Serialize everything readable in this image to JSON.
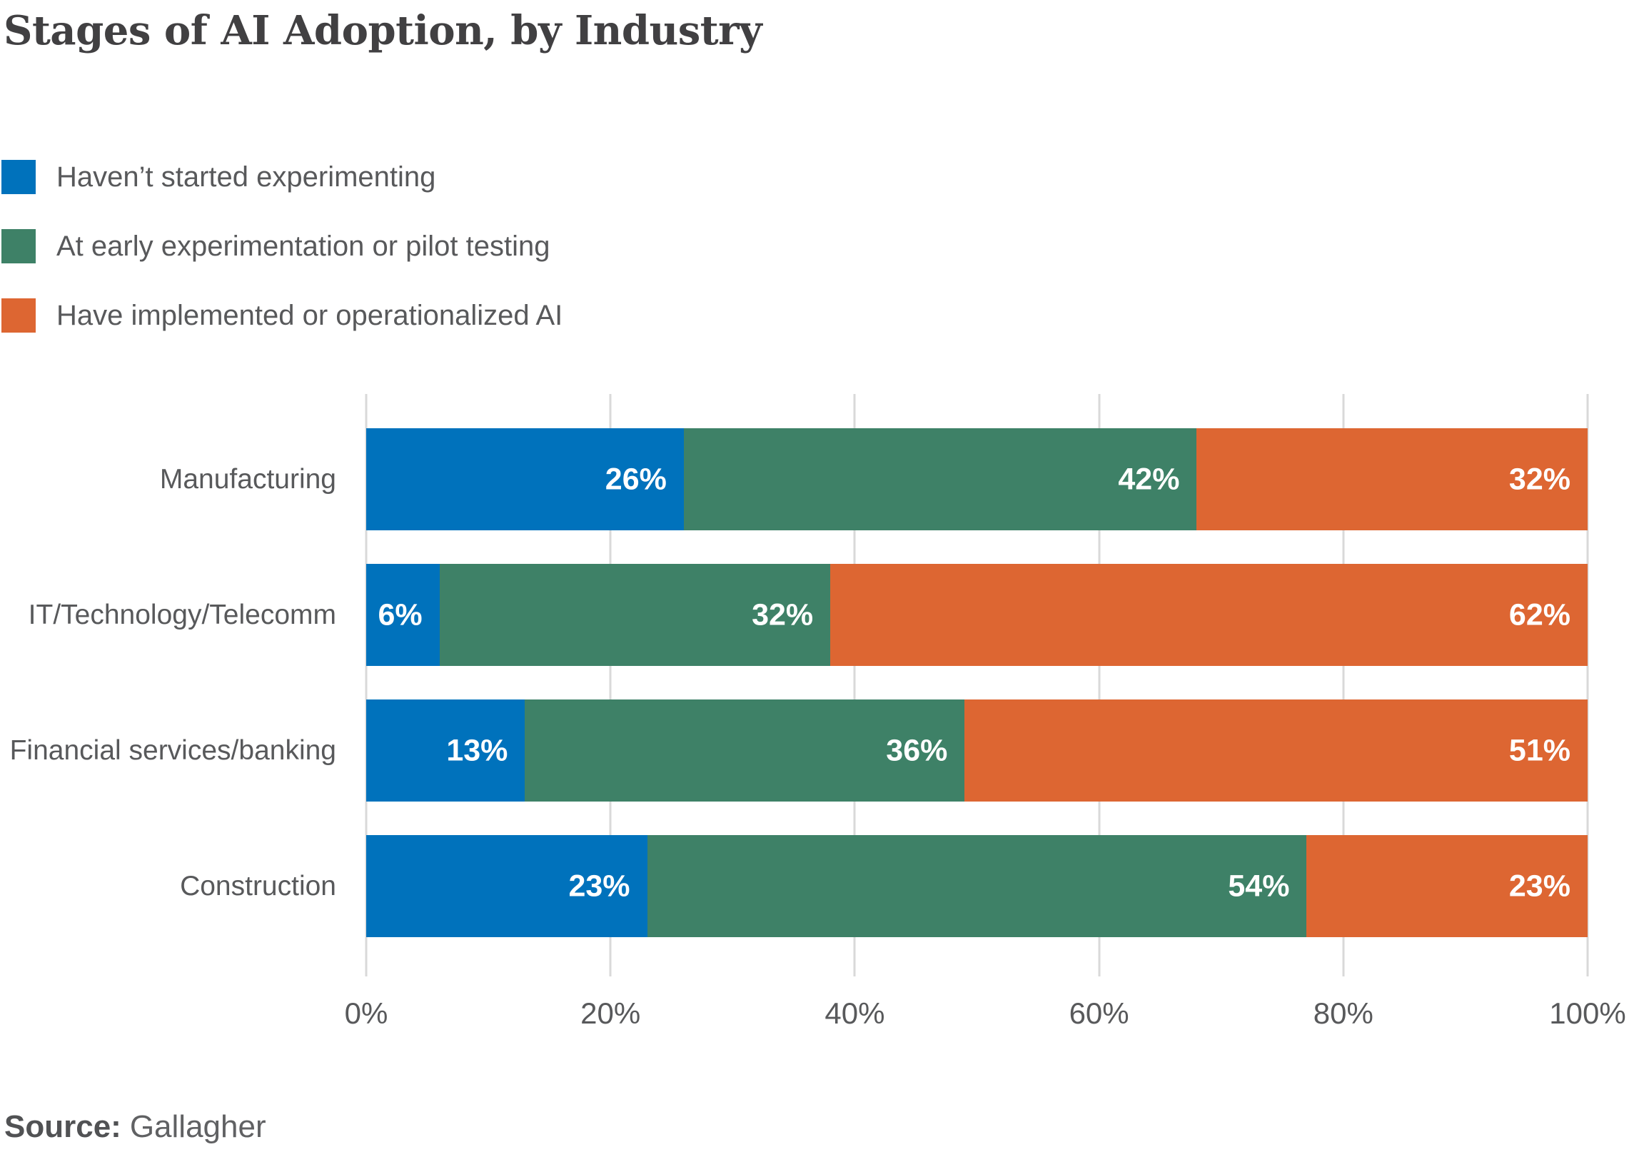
{
  "title": "Stages of AI Adoption, by Industry",
  "source": {
    "label": "Source:",
    "value": "Gallagher"
  },
  "colors": {
    "not_started": "#0072BC",
    "early_pilot": "#3E8167",
    "implemented": "#DD6632",
    "gridline": "#D9D9D9",
    "text_gray": "#58595B",
    "title_gray": "#414042",
    "value_label": "#FFFFFF"
  },
  "chart_data": {
    "type": "bar",
    "orientation": "horizontal",
    "stacked": true,
    "title": "Stages of AI Adoption, by Industry",
    "categories": [
      "Manufacturing",
      "IT/Technology/Telecomm",
      "Financial services/banking",
      "Construction"
    ],
    "series": [
      {
        "name": "Haven’t started experimenting",
        "color": "#0072BC",
        "values": [
          26,
          6,
          13,
          23
        ]
      },
      {
        "name": "At early experimentation or pilot testing",
        "color": "#3E8167",
        "values": [
          42,
          32,
          36,
          54
        ]
      },
      {
        "name": "Have implemented or operationalized AI",
        "color": "#DD6632",
        "values": [
          32,
          62,
          51,
          23
        ]
      }
    ],
    "value_label_format": "percent",
    "x_ticks": [
      "0%",
      "20%",
      "40%",
      "60%",
      "80%",
      "100%"
    ],
    "xlim": [
      0,
      100
    ],
    "grid": true,
    "legend_position": "top-left"
  }
}
